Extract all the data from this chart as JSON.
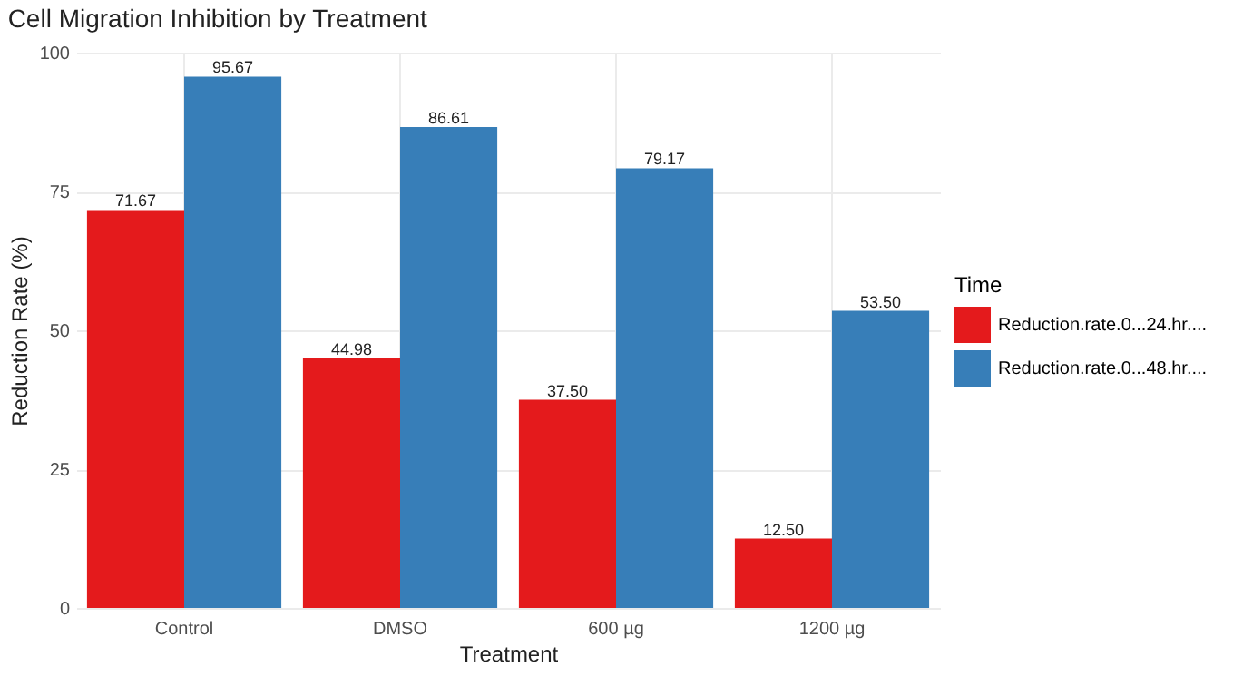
{
  "chart_data": {
    "type": "bar",
    "title": "Cell Migration Inhibition by Treatment",
    "xlabel": "Treatment",
    "ylabel": "Reduction Rate (%)",
    "legend_title": "Time",
    "categories": [
      "Control",
      "DMSO",
      "600 µg",
      "1200 µg"
    ],
    "series": [
      {
        "name": "Reduction.rate.0...24.hr....",
        "color": "#e41a1c",
        "values": [
          71.67,
          44.98,
          37.5,
          12.5
        ],
        "value_labels": [
          "71.67",
          "44.98",
          "37.50",
          "12.50"
        ]
      },
      {
        "name": "Reduction.rate.0...48.hr....",
        "color": "#377eb8",
        "values": [
          95.67,
          86.61,
          79.17,
          53.5
        ],
        "value_labels": [
          "95.67",
          "86.61",
          "79.17",
          "53.50"
        ]
      }
    ],
    "ylim": [
      0,
      100
    ],
    "yticks": [
      0,
      25,
      50,
      75,
      100
    ],
    "grid": true,
    "legend": "right"
  }
}
